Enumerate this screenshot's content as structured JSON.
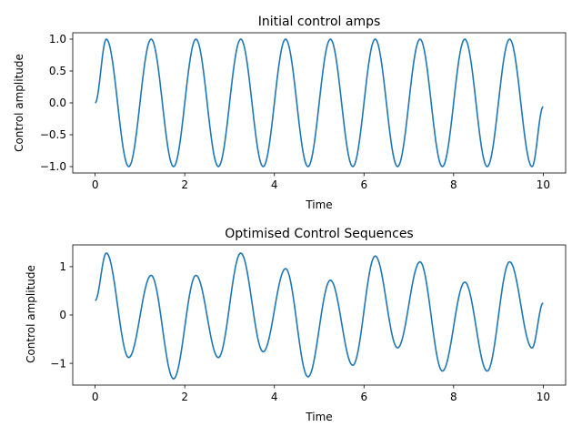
{
  "chart_data": [
    {
      "type": "line",
      "title": "Initial control amps",
      "xlabel": "Time",
      "ylabel": "Control amplitude",
      "xlim": [
        -0.5,
        10.5
      ],
      "ylim": [
        -1.1,
        1.1
      ],
      "xticks": [
        0,
        2,
        4,
        6,
        8,
        10
      ],
      "xtick_labels": [
        "0",
        "2",
        "4",
        "6",
        "8",
        "10"
      ],
      "yticks": [
        1.0,
        0.5,
        0.0,
        -0.5,
        -1.0
      ],
      "ytick_labels": [
        "1.0",
        "0.5",
        "0.0",
        "−0.5",
        "−1.0"
      ],
      "grid": false,
      "series": [
        {
          "color": "#1f77b4",
          "x": [
            0,
            0.25,
            0.75,
            1.25,
            1.75,
            2.25,
            2.75,
            3.25,
            3.75,
            4.25,
            4.75,
            5.25,
            5.75,
            6.25,
            6.75,
            7.25,
            7.75,
            8.25,
            8.75,
            9.25,
            9.75,
            10
          ],
          "y": [
            0,
            1.0,
            -1.0,
            1.0,
            -1.0,
            1.0,
            -1.0,
            1.0,
            -1.0,
            1.0,
            -1.0,
            1.0,
            -1.0,
            1.0,
            -1.0,
            1.0,
            -1.0,
            1.0,
            -1.0,
            1.0,
            -1.0,
            -0.06
          ]
        }
      ]
    },
    {
      "type": "line",
      "title": "Optimised Control Sequences",
      "xlabel": "Time",
      "ylabel": "Control amplitude",
      "xlim": [
        -0.5,
        10.5
      ],
      "ylim": [
        -1.45,
        1.45
      ],
      "xticks": [
        0,
        2,
        4,
        6,
        8,
        10
      ],
      "xtick_labels": [
        "0",
        "2",
        "4",
        "6",
        "8",
        "10"
      ],
      "yticks": [
        1,
        0,
        -1
      ],
      "ytick_labels": [
        "1",
        "0",
        "−1"
      ],
      "grid": false,
      "series": [
        {
          "color": "#1f77b4",
          "x": [
            0,
            0.25,
            0.75,
            1.25,
            1.75,
            2.25,
            2.75,
            3.25,
            3.75,
            4.25,
            4.75,
            5.25,
            5.75,
            6.25,
            6.75,
            7.25,
            7.75,
            8.25,
            8.75,
            9.25,
            9.75,
            10
          ],
          "y": [
            0.3,
            1.28,
            -0.88,
            0.82,
            -1.32,
            0.82,
            -0.88,
            1.28,
            -0.76,
            0.96,
            -1.28,
            0.72,
            -1.04,
            1.22,
            -0.68,
            1.1,
            -1.16,
            0.68,
            -1.16,
            1.1,
            -0.68,
            0.25
          ]
        }
      ]
    }
  ]
}
